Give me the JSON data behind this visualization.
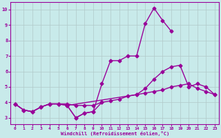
{
  "background_color": "#c8eaea",
  "grid_color": "#b0c8c8",
  "line_color": "#990099",
  "markersize": 2.5,
  "linewidth": 1.0,
  "xlim": [
    -0.5,
    23.5
  ],
  "ylim": [
    2.6,
    10.5
  ],
  "xticks": [
    0,
    1,
    2,
    3,
    4,
    5,
    6,
    7,
    8,
    9,
    10,
    11,
    12,
    13,
    14,
    15,
    16,
    17,
    18,
    19,
    20,
    21,
    22,
    23
  ],
  "yticks": [
    3,
    4,
    5,
    6,
    7,
    8,
    9,
    10
  ],
  "xlabel": "Windchill (Refroidissement éolien,°C)",
  "lines": [
    {
      "x": [
        0,
        1,
        2,
        3,
        4,
        5,
        6,
        7,
        8,
        9,
        10,
        11,
        12,
        13,
        14,
        15,
        16,
        17,
        18
      ],
      "y": [
        3.9,
        3.5,
        3.4,
        3.7,
        3.9,
        3.9,
        3.8,
        3.0,
        3.3,
        3.4,
        5.2,
        6.7,
        6.7,
        7.0,
        7.0,
        9.1,
        10.1,
        9.3,
        8.6
      ]
    },
    {
      "x": [
        0,
        1,
        2,
        3,
        4,
        5,
        6,
        14,
        15,
        16,
        17,
        18,
        19,
        20,
        21,
        22,
        23
      ],
      "y": [
        3.9,
        3.5,
        3.4,
        3.7,
        3.9,
        3.9,
        3.8,
        4.5,
        4.9,
        5.5,
        6.0,
        6.3,
        6.4,
        5.0,
        5.2,
        5.0,
        4.5
      ]
    },
    {
      "x": [
        0,
        1,
        2,
        3,
        4,
        5,
        6,
        7,
        8,
        9,
        10,
        11,
        12,
        13,
        14,
        15,
        16,
        17,
        18,
        19,
        20,
        21,
        22,
        23
      ],
      "y": [
        3.9,
        3.5,
        3.4,
        3.7,
        3.9,
        3.9,
        3.9,
        3.8,
        3.8,
        3.8,
        4.0,
        4.1,
        4.2,
        4.4,
        4.5,
        4.6,
        4.7,
        4.8,
        5.0,
        5.1,
        5.2,
        4.9,
        4.7,
        4.5
      ]
    },
    {
      "x": [
        6,
        7,
        8,
        9,
        10
      ],
      "y": [
        3.8,
        3.0,
        3.3,
        3.4,
        4.0
      ]
    }
  ]
}
